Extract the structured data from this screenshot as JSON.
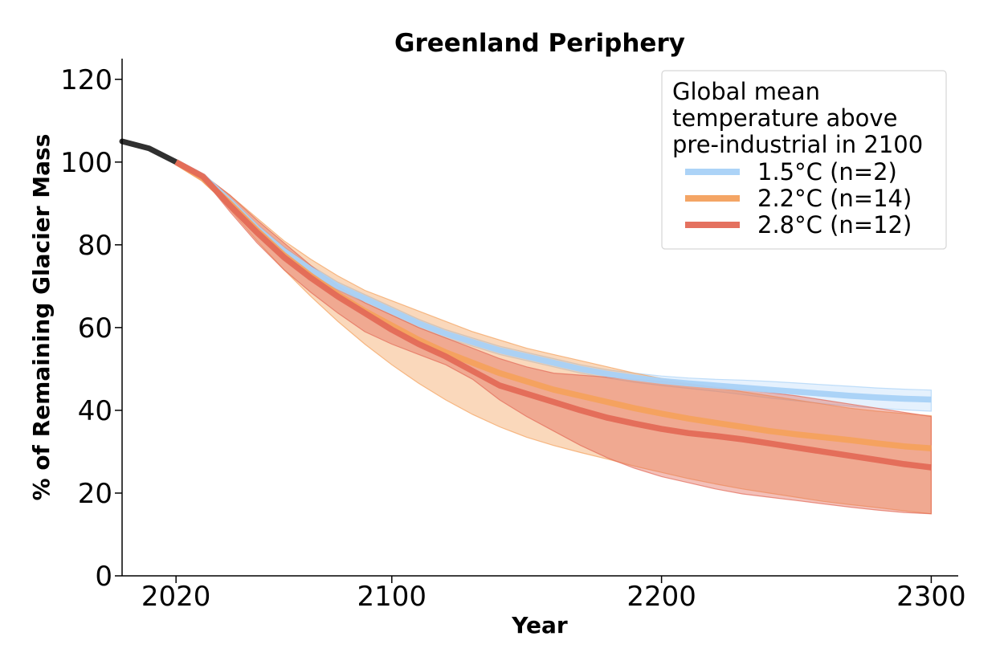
{
  "chart_data": {
    "type": "line",
    "title": "Greenland Periphery",
    "xlabel": "Year",
    "ylabel": "% of Remaining Glacier Mass",
    "xlim": [
      2000,
      2310
    ],
    "ylim": [
      0,
      125
    ],
    "xticks": [
      2020,
      2100,
      2200,
      2300
    ],
    "yticks": [
      0,
      20,
      40,
      60,
      80,
      100,
      120
    ],
    "legend": {
      "title_lines": [
        "Global mean",
        "temperature above",
        "pre-industrial in 2100"
      ],
      "placement": "top-right"
    },
    "historical": {
      "color": "#1a1a1a",
      "x": [
        2000,
        2010,
        2020
      ],
      "y": [
        105,
        103.3,
        100
      ]
    },
    "series": [
      {
        "name": "1.5°C (n=2)",
        "color": "#a8d1f7",
        "x": [
          2020,
          2030,
          2040,
          2050,
          2060,
          2070,
          2080,
          2090,
          2100,
          2110,
          2120,
          2130,
          2140,
          2150,
          2160,
          2170,
          2180,
          2190,
          2200,
          2210,
          2220,
          2230,
          2240,
          2250,
          2260,
          2270,
          2280,
          2290,
          2300
        ],
        "y": [
          100,
          96.5,
          90.5,
          84,
          78.5,
          74,
          70,
          67,
          64,
          61,
          58.5,
          56.5,
          54.5,
          53,
          51.5,
          50,
          48.8,
          47.9,
          47.1,
          46.5,
          46,
          45.5,
          45,
          44.5,
          44,
          43.5,
          43.1,
          42.8,
          42.6
        ],
        "lower": [
          100,
          96,
          89.5,
          83,
          77.5,
          73,
          69,
          66,
          63,
          60,
          57.5,
          55.5,
          53.5,
          52,
          50.5,
          49,
          47.8,
          46.8,
          46,
          45.3,
          44.6,
          43.8,
          43,
          42.3,
          41.6,
          41,
          40.5,
          40.1,
          39.8
        ],
        "upper": [
          100,
          97,
          91.5,
          85,
          79.5,
          75,
          71,
          68,
          65,
          62,
          59.5,
          57.5,
          55.5,
          54,
          52.5,
          51,
          49.8,
          49,
          48.3,
          47.8,
          47.5,
          47.3,
          47,
          46.6,
          46.2,
          45.8,
          45.4,
          45.1,
          44.9
        ]
      },
      {
        "name": "2.2°C (n=14)",
        "color": "#f4a15d",
        "x": [
          2020,
          2030,
          2040,
          2050,
          2060,
          2070,
          2080,
          2090,
          2100,
          2110,
          2120,
          2130,
          2140,
          2150,
          2160,
          2170,
          2180,
          2190,
          2200,
          2210,
          2220,
          2230,
          2240,
          2250,
          2260,
          2270,
          2280,
          2290,
          2300
        ],
        "y": [
          100,
          96,
          90,
          83.5,
          77.5,
          72.5,
          68,
          64,
          60.5,
          57,
          54,
          51.5,
          49,
          47,
          45,
          43.5,
          42,
          40.5,
          39.2,
          38,
          37,
          36,
          35,
          34.2,
          33.5,
          32.8,
          32,
          31.3,
          30.8
        ],
        "lower": [
          100,
          96,
          88.5,
          81,
          74,
          67.5,
          61.5,
          56,
          51,
          46.5,
          42.5,
          39,
          36,
          33.5,
          31.5,
          29.8,
          28.2,
          26.5,
          25,
          23.5,
          22.2,
          21,
          20,
          19,
          18,
          17.2,
          16.5,
          15.7,
          15
        ],
        "upper": [
          100,
          97,
          92,
          86.5,
          81,
          76.5,
          72.5,
          69,
          66.5,
          64,
          61.5,
          59,
          57,
          55,
          53.5,
          52,
          50.5,
          49,
          47.7,
          46.5,
          45.5,
          44.5,
          43.5,
          42.5,
          41.5,
          40.5,
          39.8,
          39.2,
          38.7
        ]
      },
      {
        "name": "2.8°C (n=12)",
        "color": "#e36a57",
        "x": [
          2020,
          2030,
          2040,
          2050,
          2060,
          2070,
          2080,
          2090,
          2100,
          2110,
          2120,
          2130,
          2140,
          2150,
          2160,
          2170,
          2180,
          2190,
          2200,
          2210,
          2220,
          2230,
          2240,
          2250,
          2260,
          2270,
          2280,
          2290,
          2300
        ],
        "y": [
          100,
          96.5,
          89.5,
          83,
          77,
          72,
          67.5,
          63.5,
          59.5,
          56,
          53,
          49.5,
          46,
          44,
          42,
          40,
          38.2,
          36.8,
          35.5,
          34.5,
          33.8,
          33,
          32,
          31,
          30,
          29,
          28,
          27,
          26.2
        ],
        "lower": [
          100,
          96,
          88,
          80.5,
          74,
          68.5,
          63.5,
          59,
          56,
          53.5,
          51,
          47.5,
          42.5,
          38.5,
          35,
          31.5,
          28.5,
          26,
          24,
          22.5,
          21,
          19.8,
          19,
          18.2,
          17.4,
          16.6,
          15.9,
          15.3,
          15
        ],
        "upper": [
          100,
          97,
          92,
          86,
          80.5,
          75,
          70,
          66,
          63,
          60,
          57.5,
          55,
          52.5,
          50.5,
          49,
          48.5,
          48,
          47.5,
          47,
          46.3,
          45.6,
          45,
          44.3,
          43.5,
          42.5,
          41.5,
          40.5,
          39.5,
          38.5
        ]
      }
    ]
  }
}
